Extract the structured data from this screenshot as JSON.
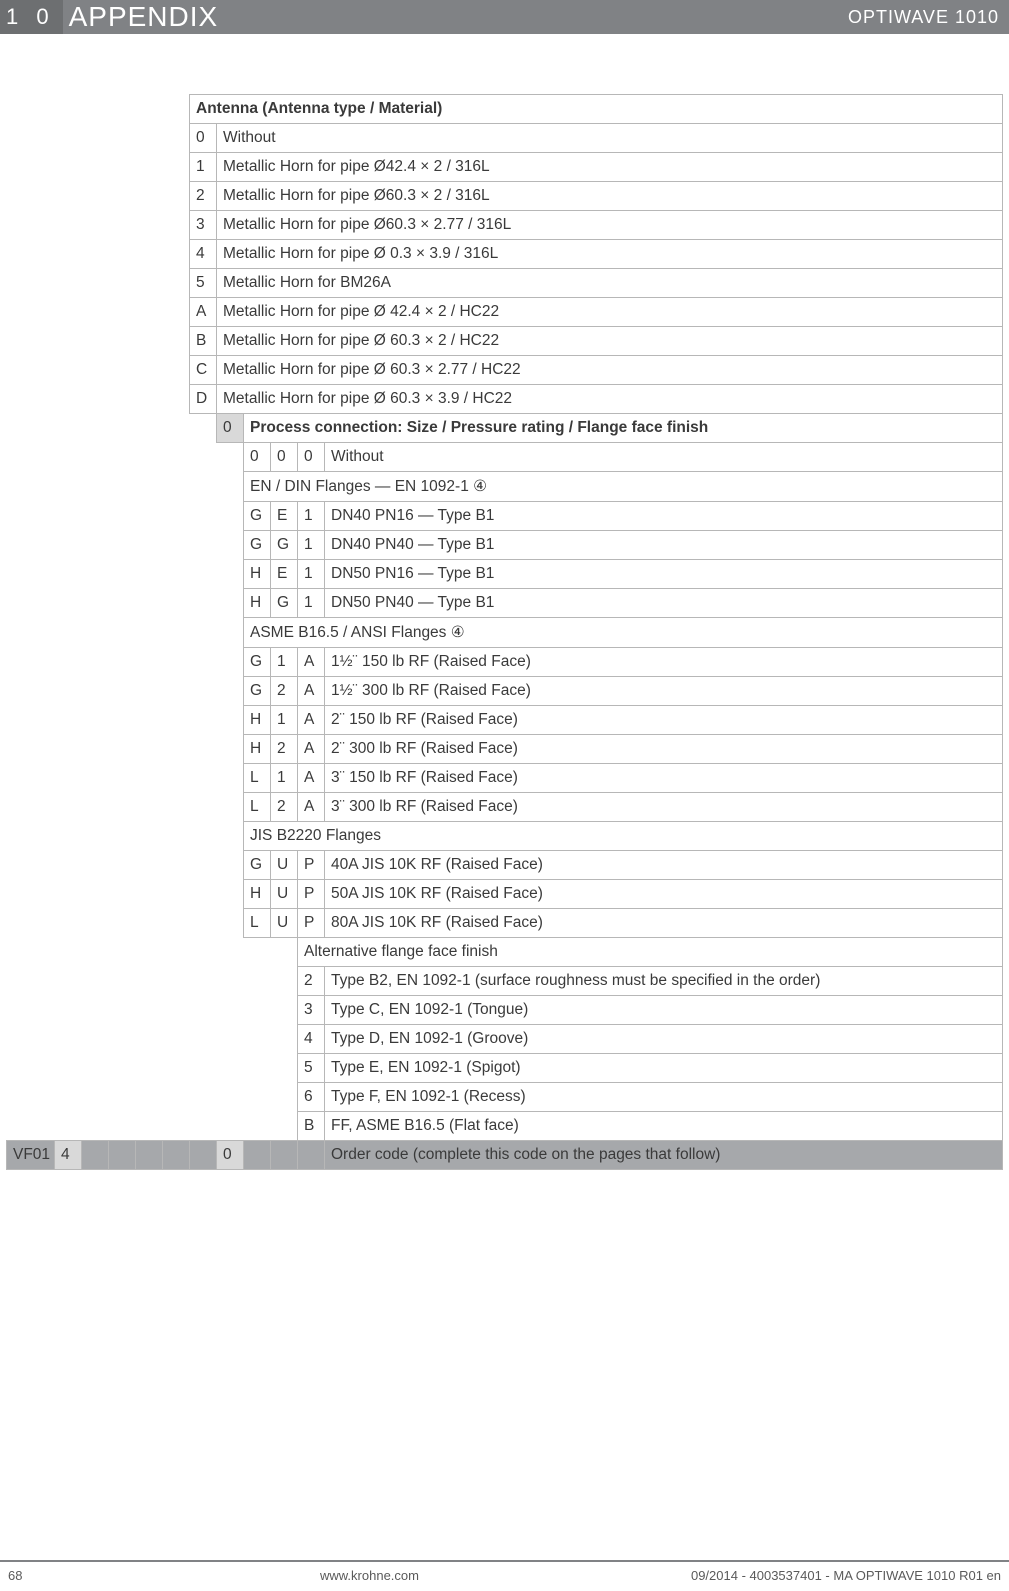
{
  "header": {
    "chapter_number": "1 0",
    "chapter_title": "APPENDIX",
    "product": "OPTIWAVE 1010"
  },
  "sections": {
    "antenna_header": "Antenna (Antenna type / Material)",
    "antenna_rows": [
      [
        "0",
        "Without"
      ],
      [
        "1",
        "Metallic Horn for pipe Ø42.4 × 2 / 316L"
      ],
      [
        "2",
        "Metallic Horn for pipe Ø60.3 × 2 / 316L"
      ],
      [
        "3",
        "Metallic Horn for pipe Ø60.3 × 2.77 / 316L"
      ],
      [
        "4",
        "Metallic Horn for pipe Ø 0.3 × 3.9 / 316L"
      ],
      [
        "5",
        "Metallic Horn for BM26A"
      ],
      [
        "A",
        "Metallic Horn for pipe Ø 42.4 × 2 / HC22"
      ],
      [
        "B",
        "Metallic Horn for pipe Ø 60.3 × 2 / HC22"
      ],
      [
        "C",
        "Metallic Horn for pipe Ø 60.3 × 2.77 / HC22"
      ],
      [
        "D",
        "Metallic Horn for pipe Ø 60.3 × 3.9 / HC22"
      ]
    ],
    "process_header_code": "0",
    "process_header": "Process connection: Size / Pressure rating / Flange face finish",
    "process_without": [
      "0",
      "0",
      "0",
      "Without"
    ],
    "en_header": "EN / DIN Flanges — EN 1092-1 ④",
    "en_rows": [
      [
        "G",
        "E",
        "1",
        "DN40 PN16 — Type B1"
      ],
      [
        "G",
        "G",
        "1",
        "DN40 PN40 — Type B1"
      ],
      [
        "H",
        "E",
        "1",
        "DN50 PN16 — Type B1"
      ],
      [
        "H",
        "G",
        "1",
        "DN50 PN40 — Type B1"
      ]
    ],
    "asme_header": "ASME B16.5 / ANSI Flanges ④",
    "asme_rows": [
      [
        "G",
        "1",
        "A",
        "1½¨ 150 lb RF (Raised Face)"
      ],
      [
        "G",
        "2",
        "A",
        "1½¨ 300 lb RF (Raised Face)"
      ],
      [
        "H",
        "1",
        "A",
        "2¨ 150 lb RF (Raised Face)"
      ],
      [
        "H",
        "2",
        "A",
        "2¨ 300 lb RF (Raised Face)"
      ],
      [
        "L",
        "1",
        "A",
        "3¨ 150 lb RF (Raised Face)"
      ],
      [
        "L",
        "2",
        "A",
        "3¨ 300 lb RF (Raised Face)"
      ]
    ],
    "jis_header": "JIS B2220 Flanges",
    "jis_rows": [
      [
        "G",
        "U",
        "P",
        "40A JIS 10K RF (Raised Face)"
      ],
      [
        "H",
        "U",
        "P",
        "50A JIS 10K RF (Raised Face)"
      ],
      [
        "L",
        "U",
        "P",
        "80A JIS 10K RF (Raised Face)"
      ]
    ],
    "alt_header": "Alternative flange face finish",
    "alt_rows": [
      [
        "2",
        "Type B2, EN 1092-1 (surface roughness must be specified in the order)"
      ],
      [
        "3",
        "Type C, EN 1092-1 (Tongue)"
      ],
      [
        "4",
        "Type D, EN 1092-1 (Groove)"
      ],
      [
        "5",
        "Type E, EN 1092-1 (Spigot)"
      ],
      [
        "6",
        "Type F, EN 1092-1 (Recess)"
      ],
      [
        "B",
        "FF, ASME B16.5 (Flat face)"
      ]
    ],
    "order_code_label": "Order code (complete this code on the pages that follow)",
    "order_prefix": "VF01",
    "order_col2": "4",
    "order_col7": "0"
  },
  "footer": {
    "page": "68",
    "url": "www.krohne.com",
    "docinfo": "09/2014 - 4003537401 - MA OPTIWAVE 1010 R01 en"
  }
}
